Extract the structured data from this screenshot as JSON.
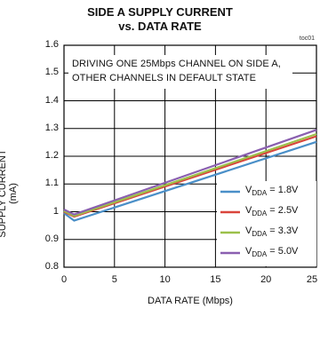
{
  "chart_data": {
    "type": "line",
    "title_line1": "SIDE A SUPPLY CURRENT",
    "title_line2": "vs. DATA RATE",
    "figure_id": "toc01",
    "annotation_line1": "DRIVING ONE 25Mbps CHANNEL ON SIDE A,",
    "annotation_line2": "OTHER CHANNELS IN DEFAULT STATE",
    "xlabel": "DATA RATE (Mbps)",
    "ylabel": "SUPPLY CURRENT (mA)",
    "xlim": [
      0,
      25
    ],
    "ylim": [
      0.8,
      1.6
    ],
    "x_ticks": [
      "0",
      "5",
      "10",
      "15",
      "20",
      "25"
    ],
    "y_ticks": [
      "1.6",
      "1.5",
      "1.4",
      "1.3",
      "1.2",
      "1.1",
      "1",
      "0.9",
      "0.8"
    ],
    "grid": true,
    "legend_position": "bottom-right",
    "series": [
      {
        "name_sym": "V",
        "name_sub": "DDA",
        "name_val": " = 1.8V",
        "color": "#4a8fc8",
        "x": [
          0,
          1,
          25
        ],
        "y": [
          0.995,
          0.968,
          1.252
        ]
      },
      {
        "name_sym": "V",
        "name_sub": "DDA",
        "name_val": " = 2.5V",
        "color": "#d9453b",
        "x": [
          0,
          1,
          25
        ],
        "y": [
          1.0,
          0.982,
          1.272
        ]
      },
      {
        "name_sym": "V",
        "name_sub": "DDA",
        "name_val": " = 3.3V",
        "color": "#9cc04a",
        "x": [
          0,
          1,
          25
        ],
        "y": [
          1.003,
          0.985,
          1.28
        ]
      },
      {
        "name_sym": "V",
        "name_sub": "DDA",
        "name_val": " = 5.0V",
        "color": "#8a5fb0",
        "x": [
          0,
          1,
          25
        ],
        "y": [
          1.008,
          0.99,
          1.295
        ]
      }
    ]
  }
}
